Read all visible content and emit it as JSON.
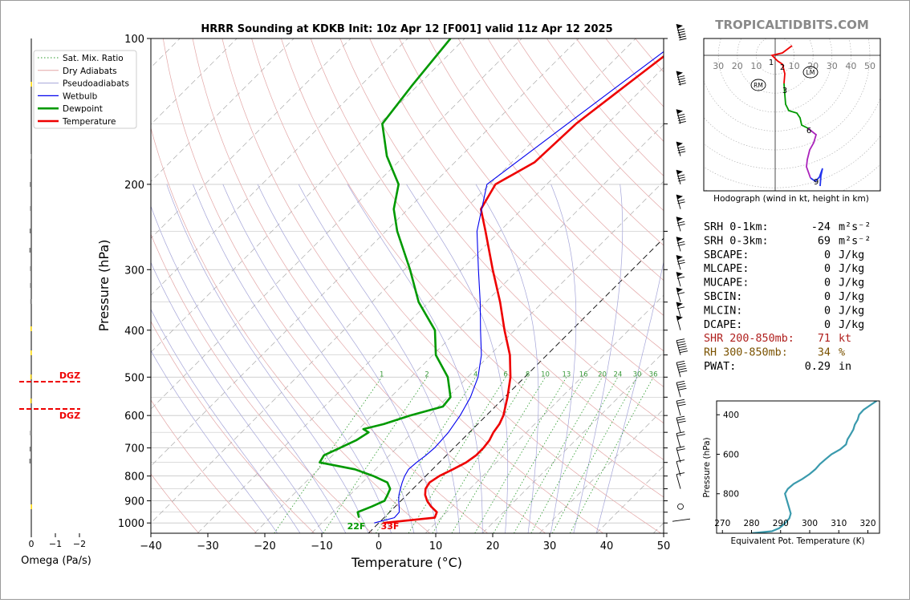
{
  "title": "HRRR Sounding at KDKB Init: 10z Apr 12 [F001] valid 11z Apr 12 2025",
  "brand": "TROPICALTIDBITS.COM",
  "colors": {
    "temperature": "#ee0000",
    "dewpoint": "#009900",
    "wetbulb": "#0000ee",
    "dry_adiabat": "#e3a6a6",
    "pseudo_adiabat": "#a4a4d8",
    "mixing_ratio": "#2a9a2a",
    "isotherm": "#aaaaaa",
    "theta_e": "#3a9aad",
    "shr": "#b0201e",
    "rh": "#7a5200"
  },
  "legend": [
    {
      "label": "Sat. Mix. Ratio",
      "style": "dotted-green"
    },
    {
      "label": "Dry Adiabats",
      "style": "thin-red"
    },
    {
      "label": "Pseudoadiabats",
      "style": "thin-blue"
    },
    {
      "label": "Wetbulb",
      "style": "blue"
    },
    {
      "label": "Dewpoint",
      "style": "thick-green"
    },
    {
      "label": "Temperature",
      "style": "thick-red"
    }
  ],
  "surface_labels": {
    "dewpoint": "22F",
    "temperature": "33F"
  },
  "omega_panel": {
    "xlabel": "Omega (Pa/s)",
    "ticks": [
      "0",
      "−1",
      "−2"
    ],
    "dgz_label": "DGZ"
  },
  "hodograph": {
    "caption": "Hodograph (wind in kt, height in km)",
    "ring_labels": [
      "30",
      "20",
      "10",
      "10",
      "20",
      "30",
      "40",
      "50"
    ],
    "rm": "RM",
    "lm": "LM",
    "height_marks": [
      "1",
      "2",
      "3",
      "6",
      "9"
    ]
  },
  "indices": [
    {
      "label": "SRH 0-1km:",
      "value": "-24",
      "unit": "m²s⁻²",
      "tone": "normal"
    },
    {
      "label": "SRH 0-3km:",
      "value": "69",
      "unit": "m²s⁻²",
      "tone": "normal"
    },
    {
      "label": "SBCAPE:",
      "value": "0",
      "unit": "J/kg",
      "tone": "normal"
    },
    {
      "label": "MLCAPE:",
      "value": "0",
      "unit": "J/kg",
      "tone": "normal"
    },
    {
      "label": "MUCAPE:",
      "value": "0",
      "unit": "J/kg",
      "tone": "normal"
    },
    {
      "label": "SBCIN:",
      "value": "0",
      "unit": "J/kg",
      "tone": "normal"
    },
    {
      "label": "MLCIN:",
      "value": "0",
      "unit": "J/kg",
      "tone": "normal"
    },
    {
      "label": "DCAPE:",
      "value": "0",
      "unit": "J/kg",
      "tone": "normal"
    },
    {
      "label": "SHR 200-850mb:",
      "value": "71",
      "unit": "kt",
      "tone": "shr"
    },
    {
      "label": "RH 300-850mb:",
      "value": "34",
      "unit": "%",
      "tone": "rh"
    },
    {
      "label": "PWAT:",
      "value": "0.29",
      "unit": "in",
      "tone": "normal"
    }
  ],
  "chart_data": [
    {
      "type": "line",
      "name": "skew-t",
      "xlabel": "Temperature (°C)",
      "ylabel": "Pressure (hPa)",
      "xlim": [
        -40,
        50
      ],
      "ylim": [
        1050,
        100
      ],
      "y_scale": "log",
      "skew": "45-degree",
      "x_ticks": [
        "−40",
        "−30",
        "−20",
        "−10",
        "0",
        "10",
        "20",
        "30",
        "40",
        "50"
      ],
      "y_ticks": [
        "100",
        "200",
        "300",
        "400",
        "500",
        "600",
        "700",
        "800",
        "900",
        "1000"
      ],
      "mixing_ratio_labels": [
        "1",
        "2",
        "4",
        "6",
        "8",
        "10",
        "13",
        "16",
        "20",
        "24",
        "30",
        "36"
      ],
      "series": [
        {
          "name": "Temperature",
          "points": [
            [
              1000,
              0.8
            ],
            [
              975,
              8.9
            ],
            [
              950,
              8.3
            ],
            [
              925,
              6.3
            ],
            [
              900,
              4.6
            ],
            [
              875,
              3.2
            ],
            [
              850,
              2.2
            ],
            [
              825,
              1.8
            ],
            [
              800,
              2.4
            ],
            [
              775,
              3.6
            ],
            [
              750,
              4.7
            ],
            [
              725,
              5.2
            ],
            [
              700,
              5.2
            ],
            [
              675,
              4.9
            ],
            [
              650,
              4.2
            ],
            [
              625,
              3.8
            ],
            [
              600,
              3.0
            ],
            [
              550,
              0.5
            ],
            [
              500,
              -2.5
            ],
            [
              450,
              -6.5
            ],
            [
              400,
              -11.8
            ],
            [
              350,
              -17.5
            ],
            [
              300,
              -24.5
            ],
            [
              250,
              -32.5
            ],
            [
              225,
              -37.2
            ],
            [
              200,
              -39.0
            ],
            [
              180,
              -36.0
            ],
            [
              150,
              -35.5
            ],
            [
              125,
              -33.5
            ],
            [
              100,
              -31.0
            ]
          ]
        },
        {
          "name": "Dewpoint",
          "points": [
            [
              975,
              -4.4
            ],
            [
              950,
              -5.6
            ],
            [
              925,
              -4.1
            ],
            [
              900,
              -2.9
            ],
            [
              875,
              -3.4
            ],
            [
              850,
              -4.0
            ],
            [
              825,
              -5.6
            ],
            [
              800,
              -9.2
            ],
            [
              775,
              -13.6
            ],
            [
              750,
              -21.0
            ],
            [
              725,
              -21.5
            ],
            [
              700,
              -20.0
            ],
            [
              675,
              -18.5
            ],
            [
              650,
              -17.7
            ],
            [
              640,
              -19.2
            ],
            [
              625,
              -16.5
            ],
            [
              600,
              -13.4
            ],
            [
              575,
              -9.2
            ],
            [
              550,
              -9.5
            ],
            [
              500,
              -13.5
            ],
            [
              450,
              -19.5
            ],
            [
              400,
              -24.0
            ],
            [
              350,
              -31.8
            ],
            [
              300,
              -39.0
            ],
            [
              250,
              -48.0
            ],
            [
              225,
              -52.5
            ],
            [
              200,
              -56.0
            ],
            [
              175,
              -63.0
            ],
            [
              150,
              -69.5
            ],
            [
              125,
              -71.0
            ],
            [
              100,
              -72.5
            ]
          ]
        },
        {
          "name": "Wetbulb",
          "points": [
            [
              1000,
              -0.8
            ],
            [
              975,
              1.8
            ],
            [
              950,
              1.7
            ],
            [
              925,
              0.7
            ],
            [
              900,
              -0.4
            ],
            [
              875,
              -1.4
            ],
            [
              850,
              -2.2
            ],
            [
              825,
              -3.0
            ],
            [
              800,
              -3.7
            ],
            [
              775,
              -4.2
            ],
            [
              750,
              -4.0
            ],
            [
              725,
              -3.6
            ],
            [
              700,
              -3.4
            ],
            [
              650,
              -3.7
            ],
            [
              600,
              -4.6
            ],
            [
              550,
              -6.0
            ],
            [
              500,
              -8.2
            ],
            [
              450,
              -11.5
            ],
            [
              400,
              -16.0
            ],
            [
              350,
              -21.0
            ],
            [
              300,
              -27.0
            ],
            [
              250,
              -34.0
            ],
            [
              200,
              -40.5
            ],
            [
              150,
              -37.0
            ],
            [
              100,
              -32.0
            ]
          ]
        }
      ]
    },
    {
      "type": "line",
      "name": "equivalent-potential-temperature",
      "xlabel": "Equivalent Pot. Temperature (K)",
      "ylabel": "Pressure (hPa)",
      "xlim": [
        268,
        324
      ],
      "ylim": [
        1000,
        330
      ],
      "x_ticks": [
        "270",
        "280",
        "290",
        "300",
        "310",
        "320"
      ],
      "y_ticks": [
        "400",
        "600",
        "800"
      ],
      "series": [
        {
          "name": "Theta-e",
          "points": [
            [
              1000,
              280
            ],
            [
              990,
              287
            ],
            [
              975,
              289.5
            ],
            [
              950,
              291.5
            ],
            [
              925,
              293
            ],
            [
              900,
              293.5
            ],
            [
              875,
              293
            ],
            [
              850,
              292.5
            ],
            [
              825,
              292
            ],
            [
              800,
              291.5
            ],
            [
              775,
              292.5
            ],
            [
              750,
              294.5
            ],
            [
              725,
              297.5
            ],
            [
              700,
              300
            ],
            [
              675,
              302
            ],
            [
              650,
              303.5
            ],
            [
              625,
              305.5
            ],
            [
              600,
              307.5
            ],
            [
              575,
              310.5
            ],
            [
              550,
              312.5
            ],
            [
              525,
              313
            ],
            [
              500,
              314
            ],
            [
              475,
              315
            ],
            [
              450,
              315.5
            ],
            [
              425,
              316.5
            ],
            [
              400,
              317
            ],
            [
              375,
              318.5
            ],
            [
              350,
              321
            ],
            [
              330,
              323
            ]
          ]
        }
      ]
    }
  ]
}
